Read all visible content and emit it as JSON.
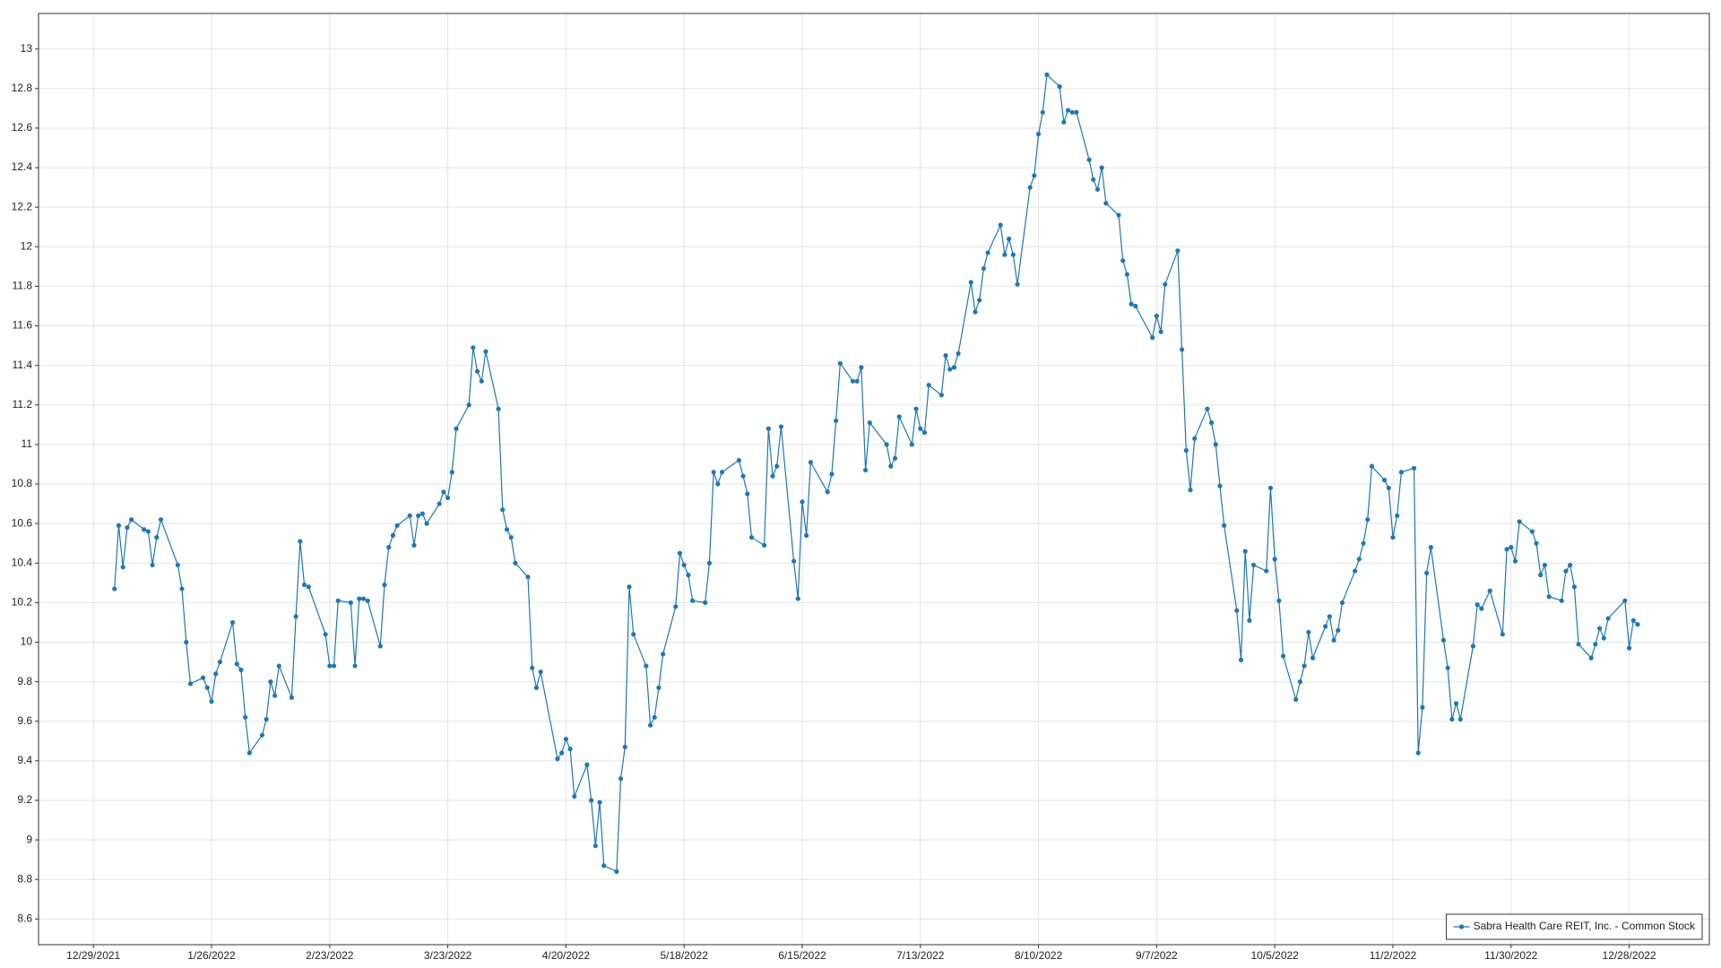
{
  "chart_data": {
    "type": "line",
    "x": [
      "1/3/2022",
      "1/4/2022",
      "1/5/2022",
      "1/6/2022",
      "1/7/2022",
      "1/10/2022",
      "1/11/2022",
      "1/12/2022",
      "1/13/2022",
      "1/14/2022",
      "1/18/2022",
      "1/19/2022",
      "1/20/2022",
      "1/21/2022",
      "1/24/2022",
      "1/25/2022",
      "1/26/2022",
      "1/27/2022",
      "1/28/2022",
      "1/31/2022",
      "2/1/2022",
      "2/2/2022",
      "2/3/2022",
      "2/4/2022",
      "2/7/2022",
      "2/8/2022",
      "2/9/2022",
      "2/10/2022",
      "2/11/2022",
      "2/14/2022",
      "2/15/2022",
      "2/16/2022",
      "2/17/2022",
      "2/18/2022",
      "2/22/2022",
      "2/23/2022",
      "2/24/2022",
      "2/25/2022",
      "2/28/2022",
      "3/1/2022",
      "3/2/2022",
      "3/3/2022",
      "3/4/2022",
      "3/7/2022",
      "3/8/2022",
      "3/9/2022",
      "3/10/2022",
      "3/11/2022",
      "3/14/2022",
      "3/15/2022",
      "3/16/2022",
      "3/17/2022",
      "3/18/2022",
      "3/21/2022",
      "3/22/2022",
      "3/23/2022",
      "3/24/2022",
      "3/25/2022",
      "3/28/2022",
      "3/29/2022",
      "3/30/2022",
      "3/31/2022",
      "4/1/2022",
      "4/4/2022",
      "4/5/2022",
      "4/6/2022",
      "4/7/2022",
      "4/8/2022",
      "4/11/2022",
      "4/12/2022",
      "4/13/2022",
      "4/14/2022",
      "4/18/2022",
      "4/19/2022",
      "4/20/2022",
      "4/21/2022",
      "4/22/2022",
      "4/25/2022",
      "4/26/2022",
      "4/27/2022",
      "4/28/2022",
      "4/29/2022",
      "5/2/2022",
      "5/3/2022",
      "5/4/2022",
      "5/5/2022",
      "5/6/2022",
      "5/9/2022",
      "5/10/2022",
      "5/11/2022",
      "5/12/2022",
      "5/13/2022",
      "5/16/2022",
      "5/17/2022",
      "5/18/2022",
      "5/19/2022",
      "5/20/2022",
      "5/23/2022",
      "5/24/2022",
      "5/25/2022",
      "5/26/2022",
      "5/27/2022",
      "5/31/2022",
      "6/1/2022",
      "6/2/2022",
      "6/3/2022",
      "6/6/2022",
      "6/7/2022",
      "6/8/2022",
      "6/9/2022",
      "6/10/2022",
      "6/13/2022",
      "6/14/2022",
      "6/15/2022",
      "6/16/2022",
      "6/17/2022",
      "6/21/2022",
      "6/22/2022",
      "6/23/2022",
      "6/24/2022",
      "6/27/2022",
      "6/28/2022",
      "6/29/2022",
      "6/30/2022",
      "7/1/2022",
      "7/5/2022",
      "7/6/2022",
      "7/7/2022",
      "7/8/2022",
      "7/11/2022",
      "7/12/2022",
      "7/13/2022",
      "7/14/2022",
      "7/15/2022",
      "7/18/2022",
      "7/19/2022",
      "7/20/2022",
      "7/21/2022",
      "7/22/2022",
      "7/25/2022",
      "7/26/2022",
      "7/27/2022",
      "7/28/2022",
      "7/29/2022",
      "8/1/2022",
      "8/2/2022",
      "8/3/2022",
      "8/4/2022",
      "8/5/2022",
      "8/8/2022",
      "8/9/2022",
      "8/10/2022",
      "8/11/2022",
      "8/12/2022",
      "8/15/2022",
      "8/16/2022",
      "8/17/2022",
      "8/18/2022",
      "8/19/2022",
      "8/22/2022",
      "8/23/2022",
      "8/24/2022",
      "8/25/2022",
      "8/26/2022",
      "8/29/2022",
      "8/30/2022",
      "8/31/2022",
      "9/1/2022",
      "9/2/2022",
      "9/6/2022",
      "9/7/2022",
      "9/8/2022",
      "9/9/2022",
      "9/12/2022",
      "9/13/2022",
      "9/14/2022",
      "9/15/2022",
      "9/16/2022",
      "9/19/2022",
      "9/20/2022",
      "9/21/2022",
      "9/22/2022",
      "9/23/2022",
      "9/26/2022",
      "9/27/2022",
      "9/28/2022",
      "9/29/2022",
      "9/30/2022",
      "10/3/2022",
      "10/4/2022",
      "10/5/2022",
      "10/6/2022",
      "10/7/2022",
      "10/10/2022",
      "10/11/2022",
      "10/12/2022",
      "10/13/2022",
      "10/14/2022",
      "10/17/2022",
      "10/18/2022",
      "10/19/2022",
      "10/20/2022",
      "10/21/2022",
      "10/24/2022",
      "10/25/2022",
      "10/26/2022",
      "10/27/2022",
      "10/28/2022",
      "10/31/2022",
      "11/1/2022",
      "11/2/2022",
      "11/3/2022",
      "11/4/2022",
      "11/7/2022",
      "11/8/2022",
      "11/9/2022",
      "11/10/2022",
      "11/11/2022",
      "11/14/2022",
      "11/15/2022",
      "11/16/2022",
      "11/17/2022",
      "11/18/2022",
      "11/21/2022",
      "11/22/2022",
      "11/23/2022",
      "11/25/2022",
      "11/28/2022",
      "11/29/2022",
      "11/30/2022",
      "12/1/2022",
      "12/2/2022",
      "12/5/2022",
      "12/6/2022",
      "12/7/2022",
      "12/8/2022",
      "12/9/2022",
      "12/12/2022",
      "12/13/2022",
      "12/14/2022",
      "12/15/2022",
      "12/16/2022",
      "12/19/2022",
      "12/20/2022",
      "12/21/2022",
      "12/22/2022",
      "12/23/2022",
      "12/27/2022",
      "12/28/2022",
      "12/29/2022",
      "12/30/2022"
    ],
    "series": [
      {
        "name": "Sabra Health Care REIT, Inc. - Common Stock",
        "color": "#1f77b4",
        "values": [
          10.27,
          10.59,
          10.38,
          10.58,
          10.62,
          10.57,
          10.56,
          10.39,
          10.53,
          10.62,
          10.39,
          10.27,
          10.0,
          9.79,
          9.82,
          9.77,
          9.7,
          9.84,
          9.9,
          10.1,
          9.89,
          9.86,
          9.62,
          9.44,
          9.53,
          9.61,
          9.8,
          9.73,
          9.88,
          9.72,
          10.13,
          10.51,
          10.29,
          10.28,
          10.04,
          9.88,
          9.88,
          10.21,
          10.2,
          9.88,
          10.22,
          10.22,
          10.21,
          9.98,
          10.29,
          10.48,
          10.54,
          10.59,
          10.64,
          10.49,
          10.64,
          10.65,
          10.6,
          10.7,
          10.76,
          10.73,
          10.86,
          11.08,
          11.2,
          11.49,
          11.37,
          11.32,
          11.47,
          11.18,
          10.67,
          10.57,
          10.53,
          10.4,
          10.33,
          9.87,
          9.77,
          9.85,
          9.41,
          9.44,
          9.51,
          9.46,
          9.22,
          9.38,
          9.2,
          8.97,
          9.19,
          8.87,
          8.84,
          9.31,
          9.47,
          10.28,
          10.04,
          9.88,
          9.58,
          9.62,
          9.77,
          9.94,
          10.18,
          10.45,
          10.39,
          10.34,
          10.21,
          10.2,
          10.4,
          10.86,
          10.8,
          10.86,
          10.92,
          10.84,
          10.75,
          10.53,
          10.49,
          11.08,
          10.84,
          10.89,
          11.09,
          10.41,
          10.22,
          10.71,
          10.54,
          10.91,
          10.76,
          10.85,
          11.12,
          11.41,
          11.32,
          11.32,
          11.39,
          10.87,
          11.11,
          11.0,
          10.89,
          10.93,
          11.14,
          11.0,
          11.18,
          11.08,
          11.06,
          11.3,
          11.25,
          11.45,
          11.38,
          11.39,
          11.46,
          11.82,
          11.67,
          11.73,
          11.89,
          11.97,
          12.11,
          11.96,
          12.04,
          11.96,
          11.81,
          12.3,
          12.36,
          12.57,
          12.68,
          12.87,
          12.81,
          12.63,
          12.69,
          12.68,
          12.68,
          12.44,
          12.34,
          12.29,
          12.4,
          12.22,
          12.16,
          11.93,
          11.86,
          11.71,
          11.7,
          11.54,
          11.65,
          11.57,
          11.81,
          11.98,
          11.48,
          10.97,
          10.77,
          11.03,
          11.18,
          11.11,
          11.0,
          10.79,
          10.59,
          10.16,
          9.91,
          10.46,
          10.11,
          10.39,
          10.36,
          10.78,
          10.42,
          10.21,
          9.93,
          9.71,
          9.8,
          9.88,
          10.05,
          9.92,
          10.08,
          10.13,
          10.01,
          10.06,
          10.2,
          10.36,
          10.42,
          10.5,
          10.62,
          10.89,
          10.82,
          10.78,
          10.53,
          10.64,
          10.86,
          10.88,
          9.44,
          9.67,
          10.35,
          10.48,
          10.01,
          9.87,
          9.61,
          9.69,
          9.61,
          9.98,
          10.19,
          10.17,
          10.26,
          10.04,
          10.47,
          10.48,
          10.41,
          10.61,
          10.56,
          10.5,
          10.34,
          10.39,
          10.23,
          10.21,
          10.36,
          10.39,
          10.28,
          9.99,
          9.92,
          9.99,
          10.07,
          10.02,
          10.12,
          10.21,
          9.97,
          10.11,
          10.09
        ]
      }
    ],
    "xlim": [
      "12/16/2021",
      "1/16/2023"
    ],
    "xticks": [
      "12/29/2021",
      "1/26/2022",
      "2/23/2022",
      "3/23/2022",
      "4/20/2022",
      "5/18/2022",
      "6/15/2022",
      "7/13/2022",
      "8/10/2022",
      "9/7/2022",
      "10/5/2022",
      "11/2/2022",
      "11/30/2022",
      "12/28/2022"
    ],
    "ylim": [
      8.47,
      13.18
    ],
    "yticks": [
      8.6,
      8.8,
      9,
      9.2,
      9.4,
      9.6,
      9.8,
      10,
      10.2,
      10.4,
      10.6,
      10.8,
      11,
      11.2,
      11.4,
      11.6,
      11.8,
      12,
      12.2,
      12.4,
      12.6,
      12.8,
      13
    ],
    "grid": true,
    "legend": "lower right"
  }
}
